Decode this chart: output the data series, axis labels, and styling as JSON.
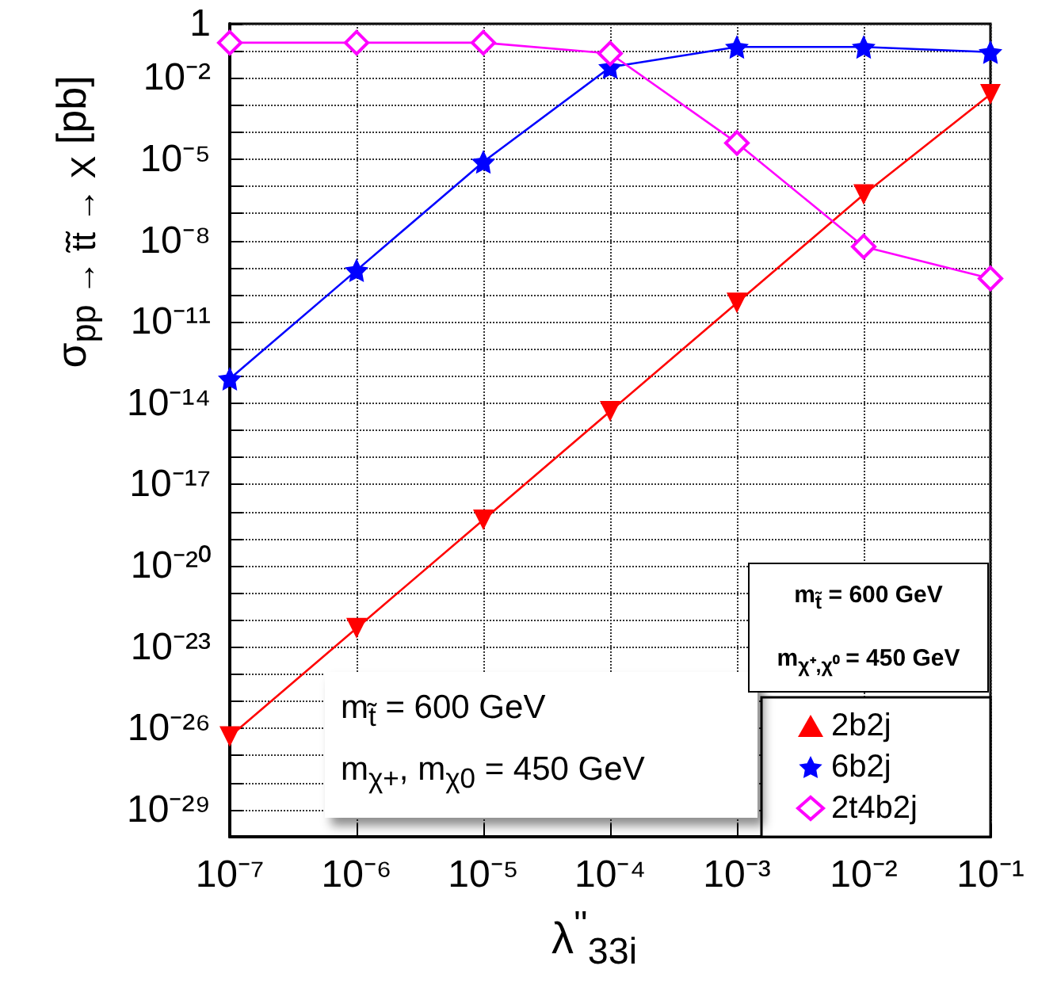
{
  "chart_data": {
    "type": "line",
    "xlabel": "λ$^{''}$$_{33i}$",
    "ylabel": "σ$_{pp → t̃t̃ → X}$ [pb]",
    "log": "xy",
    "grid": true,
    "legend": "bottom right",
    "line_style": "solid",
    "x": [
      1e-07,
      1e-06,
      1e-05,
      0.0001,
      0.001,
      0.01,
      0.1
    ],
    "xlim": [
      1e-07,
      0.1
    ],
    "xticks": [
      {
        "value": 1e-07,
        "label": "10⁻⁷"
      },
      {
        "value": 1e-06,
        "label": "10⁻⁶"
      },
      {
        "value": 1e-05,
        "label": "10⁻⁵"
      },
      {
        "value": 0.0001,
        "label": "10⁻⁴"
      },
      {
        "value": 0.001,
        "label": "10⁻³"
      },
      {
        "value": 0.01,
        "label": "10⁻²"
      },
      {
        "value": 0.1,
        "label": "10⁻¹"
      }
    ],
    "ylim": [
      1e-30,
      1
    ],
    "yticks": [
      {
        "value": 1e-30,
        "label": null
      },
      {
        "value": 1e-29,
        "label": "10⁻²⁹"
      },
      {
        "value": 1e-28,
        "label": null
      },
      {
        "value": 1e-27,
        "label": null
      },
      {
        "value": 1e-26,
        "label": "10⁻²⁶"
      },
      {
        "value": 1e-25,
        "label": null
      },
      {
        "value": 1e-24,
        "label": null
      },
      {
        "value": 1e-23,
        "label": "10⁻²³"
      },
      {
        "value": 1e-22,
        "label": null
      },
      {
        "value": 1e-21,
        "label": null
      },
      {
        "value": 1e-20,
        "label": "10⁻²⁰"
      },
      {
        "value": 1e-19,
        "label": null
      },
      {
        "value": 1e-18,
        "label": null
      },
      {
        "value": 1e-17,
        "label": "10⁻¹⁷"
      },
      {
        "value": 1e-16,
        "label": null
      },
      {
        "value": 1e-15,
        "label": null
      },
      {
        "value": 1e-14,
        "label": "10⁻¹⁴"
      },
      {
        "value": 1e-13,
        "label": null
      },
      {
        "value": 1e-12,
        "label": null
      },
      {
        "value": 1e-11,
        "label": "10⁻¹¹"
      },
      {
        "value": 1e-10,
        "label": null
      },
      {
        "value": 1e-09,
        "label": null
      },
      {
        "value": 1e-08,
        "label": "10⁻⁸"
      },
      {
        "value": 1e-07,
        "label": null
      },
      {
        "value": 1e-06,
        "label": null
      },
      {
        "value": 1e-05,
        "label": "10⁻⁵"
      },
      {
        "value": 0.0001,
        "label": null
      },
      {
        "value": 0.001,
        "label": null
      },
      {
        "value": 0.01,
        "label": "10⁻²"
      },
      {
        "value": 0.1,
        "label": null
      },
      1
    ],
    "series": [
      {
        "name": "2b2j",
        "color": "#ff0000",
        "marker": "triangle",
        "values": [
          5e-27,
          5e-23,
          5e-19,
          5e-15,
          5e-11,
          5e-07,
          0.0025
        ]
      },
      {
        "name": "6b2j",
        "color": "#0000ff",
        "marker": "star",
        "values": [
          8e-14,
          8e-10,
          8e-06,
          0.025,
          0.14,
          0.14,
          0.09
        ]
      },
      {
        "name": "2t4b2j",
        "color": "#ff00ff",
        "marker": "diamond",
        "values": [
          0.2,
          0.2,
          0.2,
          0.08,
          4e-05,
          6e-09,
          4e-10
        ]
      }
    ],
    "annotations": [
      "m$_{t̃}$ = 600 GeV",
      "m$_{χ+}$, m$_{χ0}$ = 450 GeV",
      "m$_{t̃}$ = 600 GeV",
      "m$_{χ⁺,χ⁰}$ = 450 GeV"
    ]
  }
}
